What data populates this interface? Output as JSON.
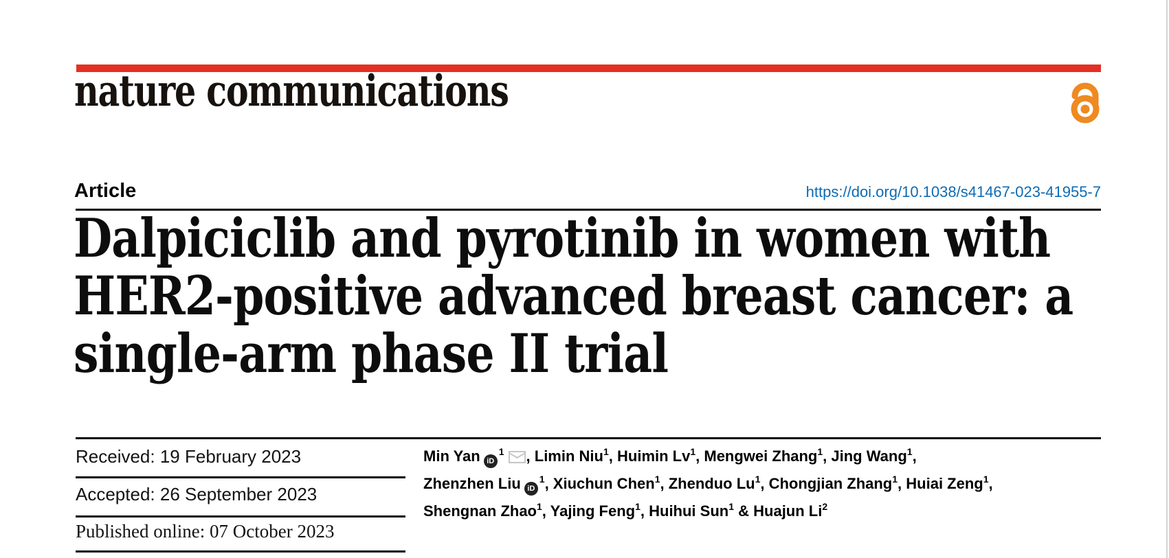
{
  "masthead": {
    "journal_logo_text": "nature communications",
    "rule_color": "#e43023",
    "open_access_icon": "open-access-padlock-icon",
    "open_access_color": "#ee8a20"
  },
  "article_header": {
    "kicker": "Article",
    "doi": "https://doi.org/10.1038/s41467-023-41955-7",
    "doi_color": "#0e6bb3"
  },
  "title": {
    "lines": [
      "Dalpiciclib and pyrotinib in women with",
      "HER2-positive advanced breast cancer: a",
      "single-arm phase II trial"
    ]
  },
  "dates": {
    "received": "Received: 19 February 2023",
    "accepted": "Accepted: 26 September 2023",
    "published": "Published online: 07 October 2023"
  },
  "authors": {
    "orcid_glyph": "iD",
    "lines": [
      [
        {
          "text": "Min Yan"
        },
        {
          "icon": "orcid-icon"
        },
        {
          "sup": "1"
        },
        {
          "icon": "email-icon"
        },
        {
          "text": ", Limin Niu"
        },
        {
          "sup": "1"
        },
        {
          "text": ", Huimin Lv"
        },
        {
          "sup": "1"
        },
        {
          "text": ", Mengwei Zhang"
        },
        {
          "sup": "1"
        },
        {
          "text": ", Jing Wang"
        },
        {
          "sup": "1"
        },
        {
          "text": ","
        }
      ],
      [
        {
          "text": "Zhenzhen Liu"
        },
        {
          "icon": "orcid-icon"
        },
        {
          "sup": "1"
        },
        {
          "text": ", Xiuchun Chen"
        },
        {
          "sup": "1"
        },
        {
          "text": ", Zhenduo Lu"
        },
        {
          "sup": "1"
        },
        {
          "text": ", Chongjian Zhang"
        },
        {
          "sup": "1"
        },
        {
          "text": ", Huiai Zeng"
        },
        {
          "sup": "1"
        },
        {
          "text": ","
        }
      ],
      [
        {
          "text": "Shengnan Zhao"
        },
        {
          "sup": "1"
        },
        {
          "text": ", Yajing Feng"
        },
        {
          "sup": "1"
        },
        {
          "text": ", Huihui Sun"
        },
        {
          "sup": "1"
        },
        {
          "text": " & Huajun Li"
        },
        {
          "sup": "2"
        }
      ]
    ]
  }
}
